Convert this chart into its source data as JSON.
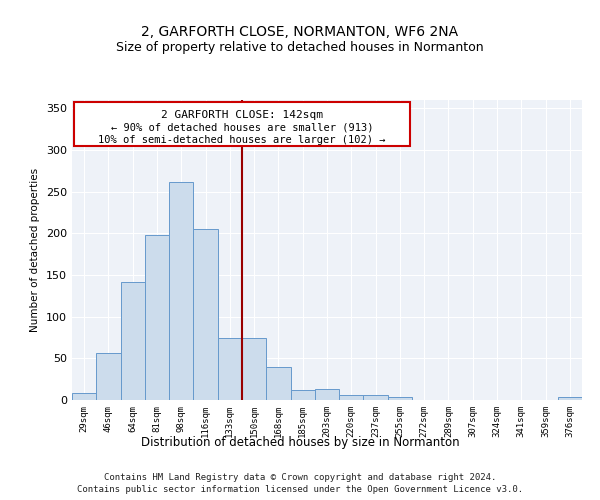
{
  "title": "2, GARFORTH CLOSE, NORMANTON, WF6 2NA",
  "subtitle": "Size of property relative to detached houses in Normanton",
  "xlabel": "Distribution of detached houses by size in Normanton",
  "ylabel": "Number of detached properties",
  "bar_color": "#ccdcec",
  "bar_edge_color": "#6699cc",
  "categories": [
    "29sqm",
    "46sqm",
    "64sqm",
    "81sqm",
    "98sqm",
    "116sqm",
    "133sqm",
    "150sqm",
    "168sqm",
    "185sqm",
    "203sqm",
    "220sqm",
    "237sqm",
    "255sqm",
    "272sqm",
    "289sqm",
    "307sqm",
    "324sqm",
    "341sqm",
    "359sqm",
    "376sqm"
  ],
  "values": [
    9,
    57,
    142,
    198,
    262,
    205,
    75,
    75,
    40,
    12,
    13,
    6,
    6,
    4,
    0,
    0,
    0,
    0,
    0,
    0,
    4
  ],
  "property_label": "2 GARFORTH CLOSE: 142sqm",
  "annotation_line1": "← 90% of detached houses are smaller (913)",
  "annotation_line2": "10% of semi-detached houses are larger (102) →",
  "vline_x": 7.5,
  "ylim": [
    0,
    360
  ],
  "yticks": [
    0,
    50,
    100,
    150,
    200,
    250,
    300,
    350
  ],
  "background_color": "#eef2f8",
  "footer1": "Contains HM Land Registry data © Crown copyright and database right 2024.",
  "footer2": "Contains public sector information licensed under the Open Government Licence v3.0."
}
